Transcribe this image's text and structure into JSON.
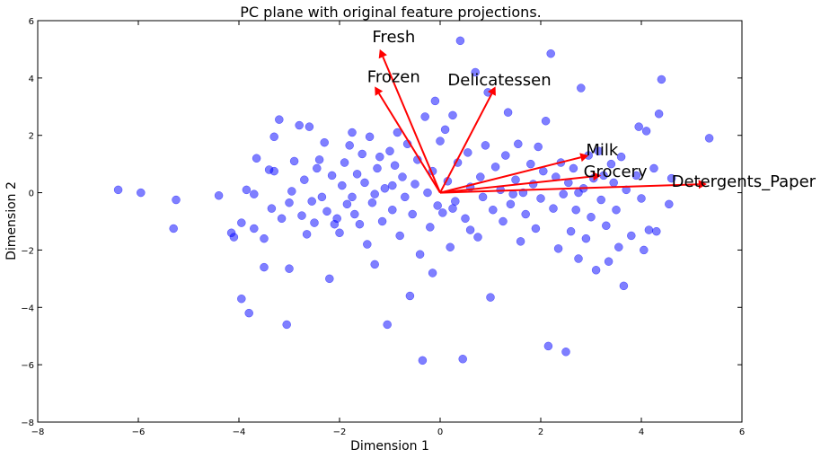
{
  "chart_data": {
    "type": "scatter",
    "title": "PC plane with original feature projections.",
    "xlabel": "Dimension 1",
    "ylabel": "Dimension 2",
    "xlim": [
      -8,
      6
    ],
    "ylim": [
      -8,
      6
    ],
    "xticks": [
      -8,
      -6,
      -4,
      -2,
      0,
      2,
      4,
      6
    ],
    "yticks": [
      -8,
      -6,
      -4,
      -2,
      0,
      2,
      4,
      6
    ],
    "grid": false,
    "point_color": "#0000ff",
    "point_alpha": 0.5,
    "arrow_color": "#ff0000",
    "points": [
      [
        -6.4,
        0.1
      ],
      [
        -5.95,
        0.0
      ],
      [
        -5.25,
        -0.25
      ],
      [
        -5.3,
        -1.25
      ],
      [
        -4.4,
        -0.1
      ],
      [
        -4.15,
        -1.4
      ],
      [
        -4.1,
        -1.55
      ],
      [
        -3.95,
        -1.05
      ],
      [
        -3.95,
        -3.7
      ],
      [
        -3.8,
        -4.2
      ],
      [
        -3.7,
        -1.25
      ],
      [
        -3.85,
        0.1
      ],
      [
        -3.7,
        -0.05
      ],
      [
        -3.65,
        1.2
      ],
      [
        -3.5,
        -2.6
      ],
      [
        -3.5,
        -1.6
      ],
      [
        -3.4,
        0.8
      ],
      [
        -3.3,
        0.75
      ],
      [
        -3.35,
        -0.55
      ],
      [
        -3.3,
        1.95
      ],
      [
        -3.2,
        2.55
      ],
      [
        -3.15,
        -0.9
      ],
      [
        -3.05,
        -4.6
      ],
      [
        -3.0,
        -2.65
      ],
      [
        -3.0,
        -0.35
      ],
      [
        -2.95,
        0.05
      ],
      [
        -2.9,
        1.1
      ],
      [
        -2.8,
        2.35
      ],
      [
        -2.75,
        -0.8
      ],
      [
        -2.7,
        0.45
      ],
      [
        -2.6,
        2.3
      ],
      [
        -2.55,
        -0.3
      ],
      [
        -2.5,
        -1.05
      ],
      [
        -2.45,
        0.85
      ],
      [
        -2.4,
        1.15
      ],
      [
        -2.35,
        -0.15
      ],
      [
        -2.3,
        1.75
      ],
      [
        -2.25,
        -0.65
      ],
      [
        -2.2,
        -3.0
      ],
      [
        -2.15,
        0.6
      ],
      [
        -2.05,
        -0.9
      ],
      [
        -2.0,
        -1.4
      ],
      [
        -1.95,
        0.25
      ],
      [
        -1.9,
        1.05
      ],
      [
        -1.85,
        -0.4
      ],
      [
        -1.8,
        1.65
      ],
      [
        -1.75,
        2.1
      ],
      [
        -1.7,
        -0.75
      ],
      [
        -1.65,
        0.65
      ],
      [
        -1.6,
        -1.1
      ],
      [
        -1.55,
        1.35
      ],
      [
        -1.5,
        0.35
      ],
      [
        -1.45,
        -1.8
      ],
      [
        -1.4,
        1.95
      ],
      [
        -1.35,
        -0.35
      ],
      [
        -1.3,
        -0.05
      ],
      [
        -1.25,
        0.85
      ],
      [
        -1.2,
        1.25
      ],
      [
        -1.15,
        -1.0
      ],
      [
        -1.1,
        0.15
      ],
      [
        -1.05,
        -4.6
      ],
      [
        -1.0,
        1.45
      ],
      [
        -0.95,
        -0.6
      ],
      [
        -0.9,
        0.95
      ],
      [
        -0.85,
        2.1
      ],
      [
        -0.8,
        -1.5
      ],
      [
        -0.75,
        0.55
      ],
      [
        -0.7,
        -0.15
      ],
      [
        -0.65,
        1.7
      ],
      [
        -0.6,
        -3.6
      ],
      [
        -0.55,
        -0.75
      ],
      [
        -0.5,
        0.3
      ],
      [
        -0.45,
        1.15
      ],
      [
        -0.4,
        -2.15
      ],
      [
        -0.35,
        -5.85
      ],
      [
        -0.3,
        2.65
      ],
      [
        -0.25,
        0.0
      ],
      [
        -0.2,
        -1.2
      ],
      [
        -0.15,
        0.75
      ],
      [
        -0.1,
        3.2
      ],
      [
        -0.05,
        -0.45
      ],
      [
        0.0,
        1.8
      ],
      [
        0.05,
        -0.7
      ],
      [
        0.1,
        2.2
      ],
      [
        0.15,
        0.4
      ],
      [
        0.2,
        -1.9
      ],
      [
        0.25,
        2.7
      ],
      [
        0.3,
        -0.3
      ],
      [
        0.35,
        1.05
      ],
      [
        0.4,
        5.3
      ],
      [
        0.45,
        -5.8
      ],
      [
        0.5,
        -0.9
      ],
      [
        0.55,
        1.4
      ],
      [
        0.6,
        0.2
      ],
      [
        0.7,
        4.2
      ],
      [
        0.75,
        -1.55
      ],
      [
        0.8,
        0.55
      ],
      [
        0.85,
        -0.15
      ],
      [
        0.9,
        1.65
      ],
      [
        0.95,
        3.5
      ],
      [
        1.0,
        -3.65
      ],
      [
        1.05,
        -0.6
      ],
      [
        1.1,
        0.9
      ],
      [
        1.2,
        0.1
      ],
      [
        1.25,
        -1.0
      ],
      [
        1.3,
        1.3
      ],
      [
        1.35,
        2.8
      ],
      [
        1.4,
        -0.4
      ],
      [
        1.5,
        0.45
      ],
      [
        1.55,
        1.7
      ],
      [
        1.6,
        -1.7
      ],
      [
        1.65,
        0.0
      ],
      [
        1.7,
        -0.75
      ],
      [
        1.8,
        1.0
      ],
      [
        1.85,
        0.3
      ],
      [
        1.9,
        -1.25
      ],
      [
        1.95,
        1.6
      ],
      [
        2.0,
        -0.2
      ],
      [
        2.05,
        0.75
      ],
      [
        2.1,
        2.5
      ],
      [
        2.15,
        -5.35
      ],
      [
        2.2,
        4.85
      ],
      [
        2.25,
        -0.55
      ],
      [
        2.3,
        0.55
      ],
      [
        2.35,
        -1.95
      ],
      [
        2.4,
        1.05
      ],
      [
        2.45,
        -0.05
      ],
      [
        2.5,
        -5.55
      ],
      [
        2.55,
        0.35
      ],
      [
        2.6,
        -1.35
      ],
      [
        2.65,
        0.85
      ],
      [
        2.7,
        -0.6
      ],
      [
        2.75,
        -2.3
      ],
      [
        2.8,
        3.65
      ],
      [
        2.85,
        0.15
      ],
      [
        2.9,
        -1.6
      ],
      [
        2.95,
        1.3
      ],
      [
        3.0,
        -0.85
      ],
      [
        3.05,
        0.5
      ],
      [
        3.1,
        -2.7
      ],
      [
        3.15,
        1.45
      ],
      [
        3.2,
        -0.25
      ],
      [
        3.3,
        -1.15
      ],
      [
        3.35,
        -2.4
      ],
      [
        3.4,
        1.0
      ],
      [
        3.45,
        0.35
      ],
      [
        3.5,
        -0.6
      ],
      [
        3.55,
        -1.9
      ],
      [
        3.6,
        1.25
      ],
      [
        3.65,
        -3.25
      ],
      [
        3.7,
        0.1
      ],
      [
        3.8,
        -1.5
      ],
      [
        3.9,
        0.6
      ],
      [
        3.95,
        2.3
      ],
      [
        4.0,
        -0.2
      ],
      [
        4.05,
        -2.0
      ],
      [
        4.1,
        2.15
      ],
      [
        4.15,
        -1.3
      ],
      [
        4.25,
        0.85
      ],
      [
        4.3,
        -1.35
      ],
      [
        4.35,
        2.75
      ],
      [
        4.4,
        3.95
      ],
      [
        4.55,
        -0.4
      ],
      [
        4.6,
        0.5
      ],
      [
        5.35,
        1.9
      ],
      [
        -2.1,
        -1.1
      ],
      [
        -1.75,
        -0.15
      ],
      [
        -0.95,
        0.25
      ],
      [
        0.25,
        -0.55
      ],
      [
        0.6,
        -1.3
      ],
      [
        1.45,
        -0.05
      ],
      [
        2.75,
        0.0
      ],
      [
        3.25,
        0.6
      ],
      [
        -2.65,
        -1.45
      ],
      [
        -1.3,
        -2.5
      ],
      [
        -0.15,
        -2.8
      ]
    ],
    "arrows": [
      {
        "name": "Fresh",
        "x": -1.2,
        "y": 5.0
      },
      {
        "name": "Frozen",
        "x": -1.3,
        "y": 3.7
      },
      {
        "name": "Delicatessen",
        "x": 1.1,
        "y": 3.7
      },
      {
        "name": "Milk",
        "x": 2.95,
        "y": 1.3
      },
      {
        "name": "Grocery",
        "x": 3.2,
        "y": 0.6
      },
      {
        "name": "Detergents_Paper",
        "x": 5.3,
        "y": 0.3
      }
    ],
    "arrow_labels": [
      {
        "text": "Fresh",
        "x": -1.35,
        "y": 5.25
      },
      {
        "text": "Frozen",
        "x": -1.45,
        "y": 3.85
      },
      {
        "text": "Delicatessen",
        "x": 0.15,
        "y": 3.75
      },
      {
        "text": "Milk",
        "x": 2.9,
        "y": 1.3
      },
      {
        "text": "Grocery",
        "x": 2.85,
        "y": 0.55
      },
      {
        "text": "Detergents_Paper",
        "x": 4.6,
        "y": 0.2
      }
    ]
  }
}
